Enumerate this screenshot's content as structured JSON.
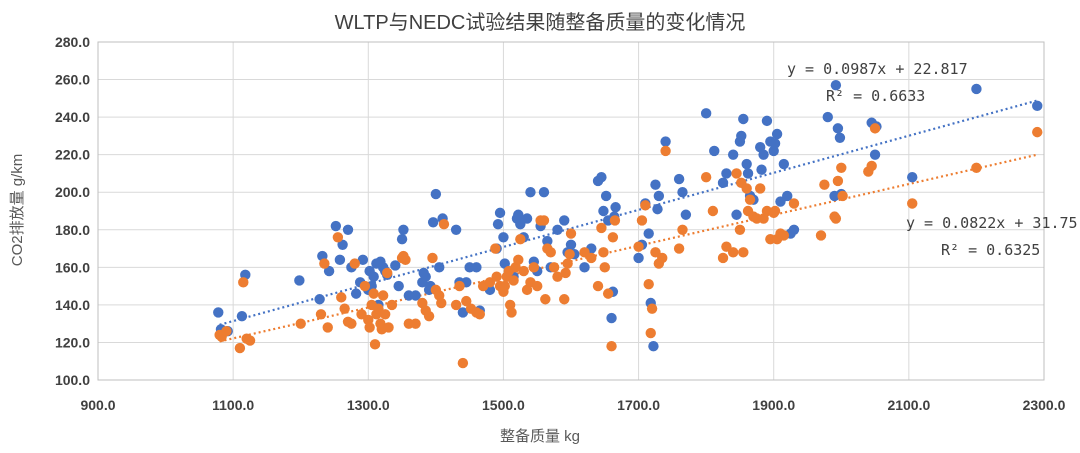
{
  "chart_data": {
    "type": "scatter",
    "title": "WLTP与NEDC试验结果随整备质量的变化情况",
    "xlabel": "整备质量 kg",
    "ylabel": "CO2排放量 g/km",
    "xlim": [
      900,
      2300
    ],
    "ylim": [
      100,
      280
    ],
    "xticks": [
      "900.0",
      "1100.0",
      "1300.0",
      "1500.0",
      "1700.0",
      "1900.0",
      "2100.0",
      "2300.0"
    ],
    "yticks": [
      "100.0",
      "120.0",
      "140.0",
      "160.0",
      "180.0",
      "200.0",
      "220.0",
      "240.0",
      "260.0",
      "280.0"
    ],
    "grid": true,
    "colors": {
      "wltp": "#4472C4",
      "nedc": "#ED7D31",
      "grid": "#D9D9D9",
      "axis": "#BFBFBF"
    },
    "series": [
      {
        "name": "WLTP",
        "trendline": {
          "equation": "y = 0.0987x + 22.817",
          "r2": "R² = 0.6633",
          "slope": 0.0987,
          "intercept": 22.817,
          "x_range": [
            1080,
            2290
          ]
        },
        "points": [
          [
            1078,
            136
          ],
          [
            1082,
            127
          ],
          [
            1092,
            126
          ],
          [
            1113,
            134
          ],
          [
            1118,
            156
          ],
          [
            1198,
            153
          ],
          [
            1228,
            143
          ],
          [
            1232,
            166
          ],
          [
            1242,
            158
          ],
          [
            1252,
            182
          ],
          [
            1258,
            164
          ],
          [
            1262,
            172
          ],
          [
            1270,
            180
          ],
          [
            1275,
            160
          ],
          [
            1282,
            146
          ],
          [
            1288,
            152
          ],
          [
            1292,
            164
          ],
          [
            1300,
            148
          ],
          [
            1302,
            158
          ],
          [
            1305,
            150
          ],
          [
            1308,
            155
          ],
          [
            1312,
            162
          ],
          [
            1315,
            140
          ],
          [
            1318,
            163
          ],
          [
            1322,
            160
          ],
          [
            1325,
            158
          ],
          [
            1328,
            156
          ],
          [
            1340,
            161
          ],
          [
            1345,
            150
          ],
          [
            1350,
            175
          ],
          [
            1352,
            180
          ],
          [
            1360,
            145
          ],
          [
            1370,
            145
          ],
          [
            1380,
            152
          ],
          [
            1382,
            157
          ],
          [
            1385,
            155
          ],
          [
            1390,
            148
          ],
          [
            1392,
            150
          ],
          [
            1396,
            184
          ],
          [
            1400,
            199
          ],
          [
            1405,
            160
          ],
          [
            1410,
            186
          ],
          [
            1430,
            180
          ],
          [
            1435,
            152
          ],
          [
            1440,
            136
          ],
          [
            1445,
            152
          ],
          [
            1450,
            160
          ],
          [
            1460,
            160
          ],
          [
            1465,
            137
          ],
          [
            1480,
            148
          ],
          [
            1490,
            170
          ],
          [
            1492,
            183
          ],
          [
            1495,
            189
          ],
          [
            1500,
            176
          ],
          [
            1502,
            162
          ],
          [
            1510,
            157
          ],
          [
            1515,
            155
          ],
          [
            1520,
            186
          ],
          [
            1522,
            188
          ],
          [
            1525,
            183
          ],
          [
            1530,
            176
          ],
          [
            1535,
            186
          ],
          [
            1540,
            200
          ],
          [
            1545,
            163
          ],
          [
            1550,
            158
          ],
          [
            1555,
            182
          ],
          [
            1560,
            200
          ],
          [
            1565,
            174
          ],
          [
            1570,
            160
          ],
          [
            1580,
            180
          ],
          [
            1590,
            185
          ],
          [
            1595,
            168
          ],
          [
            1600,
            172
          ],
          [
            1605,
            167
          ],
          [
            1620,
            160
          ],
          [
            1630,
            170
          ],
          [
            1640,
            206
          ],
          [
            1645,
            208
          ],
          [
            1648,
            190
          ],
          [
            1652,
            198
          ],
          [
            1655,
            185
          ],
          [
            1660,
            133
          ],
          [
            1662,
            147
          ],
          [
            1664,
            187
          ],
          [
            1666,
            192
          ],
          [
            1700,
            165
          ],
          [
            1705,
            172
          ],
          [
            1710,
            194
          ],
          [
            1715,
            178
          ],
          [
            1718,
            141
          ],
          [
            1722,
            118
          ],
          [
            1725,
            204
          ],
          [
            1728,
            191
          ],
          [
            1730,
            198
          ],
          [
            1740,
            227
          ],
          [
            1760,
            207
          ],
          [
            1765,
            200
          ],
          [
            1770,
            188
          ],
          [
            1800,
            242
          ],
          [
            1812,
            222
          ],
          [
            1825,
            205
          ],
          [
            1830,
            210
          ],
          [
            1840,
            220
          ],
          [
            1845,
            188
          ],
          [
            1850,
            227
          ],
          [
            1852,
            230
          ],
          [
            1855,
            239
          ],
          [
            1860,
            215
          ],
          [
            1862,
            210
          ],
          [
            1865,
            198
          ],
          [
            1870,
            196
          ],
          [
            1880,
            224
          ],
          [
            1882,
            212
          ],
          [
            1885,
            220
          ],
          [
            1890,
            238
          ],
          [
            1895,
            227
          ],
          [
            1900,
            222
          ],
          [
            1902,
            226
          ],
          [
            1905,
            231
          ],
          [
            1910,
            195
          ],
          [
            1915,
            215
          ],
          [
            1920,
            198
          ],
          [
            1925,
            178
          ],
          [
            1930,
            180
          ],
          [
            1980,
            240
          ],
          [
            1990,
            198
          ],
          [
            1992,
            257
          ],
          [
            1995,
            234
          ],
          [
            1998,
            229
          ],
          [
            2000,
            199
          ],
          [
            2045,
            237
          ],
          [
            2050,
            220
          ],
          [
            2052,
            235
          ],
          [
            2105,
            208
          ],
          [
            2200,
            255
          ],
          [
            2290,
            246
          ]
        ]
      },
      {
        "name": "NEDC",
        "trendline": {
          "equation": "y = 0.0822x + 31.75",
          "r2": "R² = 0.6325",
          "slope": 0.0822,
          "intercept": 31.75,
          "x_range": [
            1080,
            2290
          ]
        },
        "points": [
          [
            1080,
            124
          ],
          [
            1083,
            123
          ],
          [
            1090,
            126
          ],
          [
            1110,
            117
          ],
          [
            1115,
            152
          ],
          [
            1120,
            122
          ],
          [
            1125,
            121
          ],
          [
            1200,
            130
          ],
          [
            1230,
            135
          ],
          [
            1235,
            162
          ],
          [
            1240,
            128
          ],
          [
            1255,
            176
          ],
          [
            1260,
            144
          ],
          [
            1265,
            138
          ],
          [
            1270,
            131
          ],
          [
            1275,
            130
          ],
          [
            1280,
            162
          ],
          [
            1290,
            135
          ],
          [
            1295,
            150
          ],
          [
            1300,
            132
          ],
          [
            1302,
            128
          ],
          [
            1305,
            140
          ],
          [
            1308,
            146
          ],
          [
            1310,
            119
          ],
          [
            1312,
            135
          ],
          [
            1315,
            138
          ],
          [
            1318,
            130
          ],
          [
            1320,
            127
          ],
          [
            1322,
            145
          ],
          [
            1325,
            135
          ],
          [
            1328,
            157
          ],
          [
            1330,
            128
          ],
          [
            1335,
            140
          ],
          [
            1350,
            165
          ],
          [
            1352,
            166
          ],
          [
            1355,
            164
          ],
          [
            1360,
            130
          ],
          [
            1370,
            130
          ],
          [
            1380,
            141
          ],
          [
            1385,
            137
          ],
          [
            1390,
            134
          ],
          [
            1395,
            165
          ],
          [
            1400,
            148
          ],
          [
            1405,
            145
          ],
          [
            1408,
            141
          ],
          [
            1412,
            183
          ],
          [
            1430,
            140
          ],
          [
            1435,
            150
          ],
          [
            1440,
            109
          ],
          [
            1445,
            142
          ],
          [
            1452,
            138
          ],
          [
            1460,
            136
          ],
          [
            1465,
            135
          ],
          [
            1470,
            150
          ],
          [
            1480,
            152
          ],
          [
            1488,
            170
          ],
          [
            1490,
            155
          ],
          [
            1495,
            150
          ],
          [
            1500,
            147
          ],
          [
            1502,
            150
          ],
          [
            1505,
            155
          ],
          [
            1508,
            158
          ],
          [
            1510,
            140
          ],
          [
            1512,
            136
          ],
          [
            1515,
            153
          ],
          [
            1518,
            160
          ],
          [
            1522,
            164
          ],
          [
            1525,
            175
          ],
          [
            1530,
            158
          ],
          [
            1535,
            148
          ],
          [
            1540,
            152
          ],
          [
            1545,
            160
          ],
          [
            1550,
            150
          ],
          [
            1555,
            185
          ],
          [
            1560,
            185
          ],
          [
            1562,
            143
          ],
          [
            1565,
            170
          ],
          [
            1570,
            168
          ],
          [
            1575,
            160
          ],
          [
            1580,
            155
          ],
          [
            1590,
            143
          ],
          [
            1592,
            157
          ],
          [
            1595,
            162
          ],
          [
            1598,
            167
          ],
          [
            1600,
            178
          ],
          [
            1620,
            168
          ],
          [
            1630,
            165
          ],
          [
            1640,
            150
          ],
          [
            1645,
            181
          ],
          [
            1648,
            168
          ],
          [
            1650,
            160
          ],
          [
            1655,
            146
          ],
          [
            1660,
            118
          ],
          [
            1662,
            176
          ],
          [
            1665,
            185
          ],
          [
            1700,
            171
          ],
          [
            1705,
            185
          ],
          [
            1710,
            193
          ],
          [
            1715,
            151
          ],
          [
            1718,
            125
          ],
          [
            1720,
            138
          ],
          [
            1725,
            168
          ],
          [
            1730,
            162
          ],
          [
            1735,
            165
          ],
          [
            1740,
            222
          ],
          [
            1760,
            170
          ],
          [
            1765,
            180
          ],
          [
            1800,
            208
          ],
          [
            1810,
            190
          ],
          [
            1825,
            165
          ],
          [
            1830,
            171
          ],
          [
            1840,
            168
          ],
          [
            1845,
            210
          ],
          [
            1850,
            180
          ],
          [
            1852,
            205
          ],
          [
            1855,
            168
          ],
          [
            1860,
            202
          ],
          [
            1862,
            190
          ],
          [
            1865,
            196
          ],
          [
            1870,
            187
          ],
          [
            1875,
            186
          ],
          [
            1880,
            202
          ],
          [
            1885,
            186
          ],
          [
            1890,
            190
          ],
          [
            1895,
            175
          ],
          [
            1900,
            189
          ],
          [
            1902,
            190
          ],
          [
            1905,
            175
          ],
          [
            1910,
            178
          ],
          [
            1915,
            177
          ],
          [
            1930,
            194
          ],
          [
            1970,
            177
          ],
          [
            1975,
            204
          ],
          [
            1990,
            187
          ],
          [
            1992,
            186
          ],
          [
            1995,
            206
          ],
          [
            2000,
            213
          ],
          [
            2002,
            198
          ],
          [
            2040,
            211
          ],
          [
            2045,
            214
          ],
          [
            2050,
            234
          ],
          [
            2105,
            194
          ],
          [
            2200,
            213
          ],
          [
            2290,
            232
          ]
        ]
      }
    ]
  }
}
